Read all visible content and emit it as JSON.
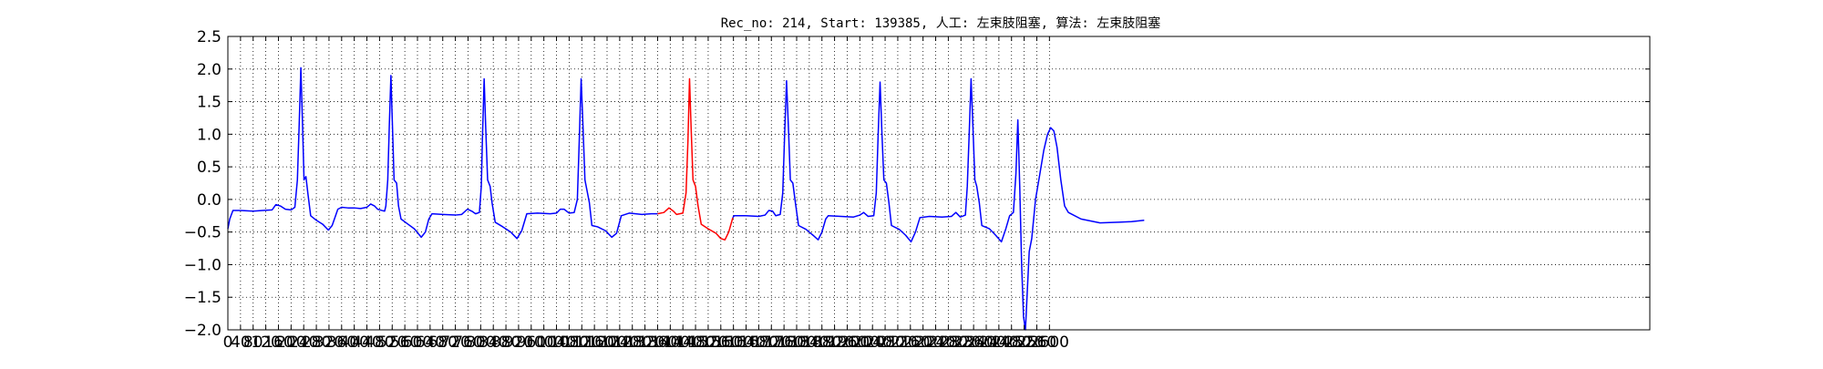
{
  "chart_data": {
    "type": "line",
    "title": "Rec_no: 214, Start: 139385, 人工: 左束肢阻塞, 算法: 左束肢阻塞",
    "xlabel": "",
    "ylabel": "",
    "xlim": [
      0,
      4500
    ],
    "ylim": [
      -2.0,
      2.5
    ],
    "grid": true,
    "x_tick_values": [
      0,
      40,
      80,
      120,
      160,
      200,
      240,
      280,
      320,
      360,
      400,
      440,
      480,
      520,
      560,
      600,
      640,
      680,
      720,
      760,
      800,
      840,
      880,
      920,
      960,
      1000,
      1040,
      1080,
      1120,
      1160,
      1200,
      1240,
      1280,
      1320,
      1360,
      1400,
      1440,
      1480,
      1520,
      1560,
      1600,
      1640,
      1680,
      1720,
      1760,
      1800,
      1840,
      1880,
      1920,
      1960,
      2000,
      2040,
      2080,
      2120,
      2160,
      2200,
      2240,
      2280,
      2320,
      2360,
      2400,
      2440,
      2480,
      2520,
      2560,
      2600
    ],
    "x_tick_labels": [
      "0",
      "40",
      "80",
      "120",
      "160",
      "200",
      "240",
      "280",
      "320",
      "360",
      "400",
      "440",
      "480",
      "520",
      "560",
      "600",
      "640",
      "680",
      "720",
      "760",
      "800",
      "840",
      "880",
      "920",
      "960",
      "1000",
      "1040",
      "1080",
      "1120",
      "1160",
      "1200",
      "1240",
      "1280",
      "1320",
      "1360",
      "1400",
      "1440",
      "1480",
      "1520",
      "1560",
      "1600",
      "1640",
      "1680",
      "1720",
      "1760",
      "1800",
      "1840",
      "1880",
      "1920",
      "1960",
      "2000",
      "2040",
      "2080",
      "2120",
      "2160",
      "2200",
      "2240",
      "2280",
      "2320",
      "2360",
      "2400",
      "2440",
      "2480",
      "2520",
      "2560",
      "2600"
    ],
    "y_tick_values": [
      2.5,
      2.0,
      1.5,
      1.0,
      0.5,
      0.0,
      -0.5,
      -1.0,
      -1.5,
      -2.0
    ],
    "y_tick_labels": [
      "2.5",
      "2.0",
      "1.5",
      "1.0",
      "0.5",
      "0.0",
      "−0.5",
      "−1.0",
      "−1.5",
      "−2.0"
    ],
    "series_style": [
      {
        "name": "ecg",
        "color": "#0000ff"
      },
      {
        "name": "highlighted-beat",
        "color": "#ff0000"
      }
    ],
    "series": [
      {
        "name": "ecg-before",
        "color": "#0000ff",
        "points": [
          [
            0,
            -0.45
          ],
          [
            6,
            -0.3
          ],
          [
            16,
            -0.17
          ],
          [
            40,
            -0.17
          ],
          [
            80,
            -0.18
          ],
          [
            110,
            -0.17
          ],
          [
            140,
            -0.16
          ],
          [
            152,
            -0.08
          ],
          [
            166,
            -0.1
          ],
          [
            182,
            -0.15
          ],
          [
            200,
            -0.16
          ],
          [
            212,
            -0.12
          ],
          [
            220,
            0.3
          ],
          [
            226,
            1.2
          ],
          [
            231,
            2.02
          ],
          [
            236,
            1.2
          ],
          [
            241,
            0.3
          ],
          [
            247,
            0.35
          ],
          [
            253,
            0.1
          ],
          [
            262,
            -0.25
          ],
          [
            280,
            -0.32
          ],
          [
            300,
            -0.38
          ],
          [
            318,
            -0.47
          ],
          [
            330,
            -0.4
          ],
          [
            348,
            -0.15
          ],
          [
            360,
            -0.12
          ],
          [
            380,
            -0.13
          ],
          [
            400,
            -0.13
          ],
          [
            420,
            -0.14
          ],
          [
            440,
            -0.12
          ],
          [
            452,
            -0.07
          ],
          [
            464,
            -0.1
          ],
          [
            474,
            -0.15
          ],
          [
            488,
            -0.17
          ],
          [
            496,
            -0.18
          ],
          [
            500,
            -0.1
          ],
          [
            506,
            0.3
          ],
          [
            511,
            1.15
          ],
          [
            516,
            1.9
          ],
          [
            521,
            1.1
          ],
          [
            526,
            0.3
          ],
          [
            534,
            0.25
          ],
          [
            540,
            -0.1
          ],
          [
            548,
            -0.3
          ],
          [
            570,
            -0.38
          ],
          [
            590,
            -0.45
          ],
          [
            612,
            -0.58
          ],
          [
            625,
            -0.5
          ],
          [
            636,
            -0.3
          ],
          [
            646,
            -0.22
          ],
          [
            680,
            -0.23
          ],
          [
            720,
            -0.24
          ],
          [
            740,
            -0.23
          ],
          [
            758,
            -0.15
          ],
          [
            772,
            -0.18
          ],
          [
            784,
            -0.22
          ],
          [
            796,
            -0.2
          ],
          [
            802,
            0.2
          ],
          [
            806,
            1.0
          ],
          [
            811,
            1.85
          ],
          [
            816,
            1.1
          ],
          [
            822,
            0.3
          ],
          [
            830,
            0.2
          ],
          [
            836,
            -0.05
          ],
          [
            846,
            -0.35
          ],
          [
            870,
            -0.42
          ],
          [
            895,
            -0.5
          ],
          [
            915,
            -0.6
          ],
          [
            930,
            -0.48
          ],
          [
            946,
            -0.22
          ],
          [
            980,
            -0.21
          ],
          [
            1020,
            -0.22
          ],
          [
            1040,
            -0.21
          ],
          [
            1052,
            -0.15
          ],
          [
            1064,
            -0.15
          ],
          [
            1080,
            -0.21
          ],
          [
            1096,
            -0.2
          ],
          [
            1106,
            0.0
          ],
          [
            1112,
            0.9
          ],
          [
            1118,
            1.85
          ],
          [
            1124,
            1.1
          ],
          [
            1130,
            0.3
          ],
          [
            1136,
            0.15
          ],
          [
            1144,
            -0.05
          ],
          [
            1152,
            -0.4
          ],
          [
            1170,
            -0.42
          ],
          [
            1195,
            -0.48
          ],
          [
            1215,
            -0.58
          ],
          [
            1230,
            -0.52
          ],
          [
            1245,
            -0.25
          ],
          [
            1270,
            -0.21
          ],
          [
            1310,
            -0.23
          ],
          [
            1340,
            -0.22
          ],
          [
            1360,
            -0.22
          ]
        ]
      },
      {
        "name": "ecg-highlighted",
        "color": "#ff0000",
        "points": [
          [
            1360,
            -0.22
          ],
          [
            1380,
            -0.2
          ],
          [
            1396,
            -0.13
          ],
          [
            1410,
            -0.18
          ],
          [
            1420,
            -0.23
          ],
          [
            1440,
            -0.21
          ],
          [
            1450,
            0.1
          ],
          [
            1456,
            0.9
          ],
          [
            1461,
            1.85
          ],
          [
            1466,
            1.1
          ],
          [
            1472,
            0.3
          ],
          [
            1480,
            0.2
          ],
          [
            1488,
            -0.1
          ],
          [
            1498,
            -0.38
          ],
          [
            1520,
            -0.45
          ],
          [
            1545,
            -0.52
          ],
          [
            1560,
            -0.6
          ],
          [
            1573,
            -0.62
          ],
          [
            1585,
            -0.5
          ],
          [
            1598,
            -0.28
          ]
        ]
      },
      {
        "name": "ecg-after",
        "color": "#0000ff",
        "points": [
          [
            1598,
            -0.28
          ],
          [
            1602,
            -0.25
          ],
          [
            1640,
            -0.25
          ],
          [
            1680,
            -0.26
          ],
          [
            1700,
            -0.24
          ],
          [
            1712,
            -0.17
          ],
          [
            1724,
            -0.18
          ],
          [
            1734,
            -0.25
          ],
          [
            1748,
            -0.23
          ],
          [
            1756,
            0.1
          ],
          [
            1762,
            1.0
          ],
          [
            1768,
            1.82
          ],
          [
            1774,
            1.1
          ],
          [
            1780,
            0.3
          ],
          [
            1788,
            0.25
          ],
          [
            1796,
            -0.05
          ],
          [
            1806,
            -0.4
          ],
          [
            1830,
            -0.46
          ],
          [
            1852,
            -0.55
          ],
          [
            1868,
            -0.62
          ],
          [
            1880,
            -0.5
          ],
          [
            1892,
            -0.3
          ],
          [
            1900,
            -0.25
          ],
          [
            1940,
            -0.26
          ],
          [
            1980,
            -0.27
          ],
          [
            2000,
            -0.24
          ],
          [
            2012,
            -0.2
          ],
          [
            2026,
            -0.26
          ],
          [
            2044,
            -0.25
          ],
          [
            2052,
            0.1
          ],
          [
            2058,
            1.0
          ],
          [
            2064,
            1.8
          ],
          [
            2070,
            1.0
          ],
          [
            2076,
            0.3
          ],
          [
            2084,
            0.25
          ],
          [
            2092,
            -0.05
          ],
          [
            2100,
            -0.4
          ],
          [
            2125,
            -0.46
          ],
          [
            2145,
            -0.55
          ],
          [
            2162,
            -0.65
          ],
          [
            2176,
            -0.5
          ],
          [
            2190,
            -0.28
          ],
          [
            2220,
            -0.26
          ],
          [
            2260,
            -0.27
          ],
          [
            2290,
            -0.26
          ],
          [
            2304,
            -0.2
          ],
          [
            2318,
            -0.27
          ],
          [
            2334,
            -0.24
          ],
          [
            2340,
            0.2
          ],
          [
            2346,
            1.0
          ],
          [
            2352,
            1.85
          ],
          [
            2358,
            1.1
          ],
          [
            2364,
            0.3
          ],
          [
            2370,
            0.2
          ],
          [
            2378,
            -0.05
          ],
          [
            2386,
            -0.4
          ],
          [
            2410,
            -0.45
          ],
          [
            2430,
            -0.55
          ],
          [
            2448,
            -0.65
          ],
          [
            2462,
            -0.45
          ],
          [
            2474,
            -0.25
          ],
          [
            2486,
            -0.2
          ],
          [
            2494,
            0.4
          ],
          [
            2500,
            1.22
          ],
          [
            2506,
            0.2
          ],
          [
            2512,
            -1.0
          ],
          [
            2518,
            -1.8
          ],
          [
            2524,
            -2.0
          ],
          [
            2530,
            -1.4
          ],
          [
            2536,
            -0.8
          ],
          [
            2544,
            -0.6
          ],
          [
            2556,
            0.0
          ],
          [
            2570,
            0.4
          ],
          [
            2582,
            0.75
          ],
          [
            2594,
            1.0
          ],
          [
            2604,
            1.1
          ],
          [
            2614,
            1.05
          ],
          [
            2624,
            0.8
          ],
          [
            2636,
            0.3
          ],
          [
            2648,
            -0.1
          ],
          [
            2660,
            -0.2
          ],
          [
            2700,
            -0.3
          ],
          [
            2760,
            -0.36
          ],
          [
            2820,
            -0.35
          ],
          [
            2860,
            -0.34
          ],
          [
            2900,
            -0.32
          ]
        ]
      }
    ]
  }
}
